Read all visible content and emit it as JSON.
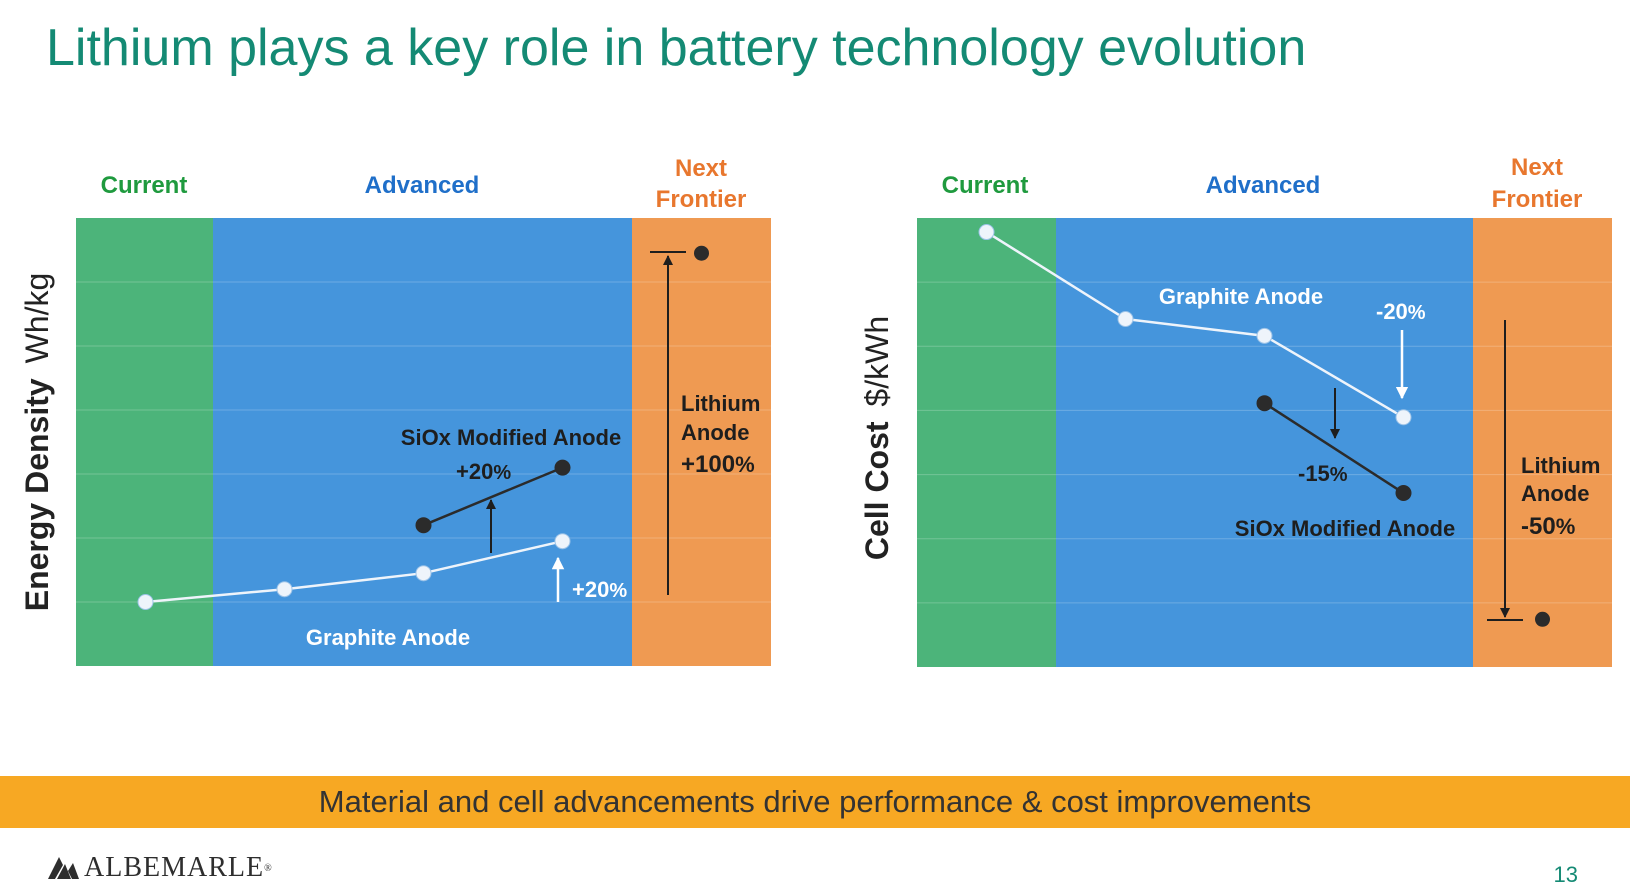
{
  "slide": {
    "title": "Lithium plays a key role in battery technology evolution",
    "banner": "Material and cell advancements drive performance & cost improvements",
    "logo_text": "ALBEMARLE",
    "logo_reg": "®",
    "page_number": "13"
  },
  "colors": {
    "title": "#148a74",
    "current_zone": "#4cb47a",
    "advanced_zone": "#4595dc",
    "frontier_zone": "#ef9a52",
    "current_label": "#1f9a3e",
    "advanced_label": "#1f6fc9",
    "frontier_label": "#e8772e",
    "graphite_series": "#eef4fb",
    "siox_series": "#2b2b2b",
    "banner": "#f7a823"
  },
  "chart_data": [
    {
      "type": "line",
      "title": "",
      "ylabel_bold": "Energy Density",
      "ylabel_unit": "Wh/kg",
      "zones": [
        {
          "label_lines": [
            "Current"
          ]
        },
        {
          "label_lines": [
            "Advanced"
          ]
        },
        {
          "label_lines": [
            "Next",
            "Frontier"
          ]
        }
      ],
      "ylim": [
        0,
        7
      ],
      "grid": true,
      "series": [
        {
          "name": "Graphite Anode",
          "points": [
            [
              0.5,
              1.0
            ],
            [
              1.5,
              1.2
            ],
            [
              2.5,
              1.45
            ],
            [
              3.5,
              1.95
            ]
          ]
        },
        {
          "name": "SiOx Modified Anode",
          "points": [
            [
              2.5,
              2.2
            ],
            [
              3.5,
              3.1
            ]
          ]
        },
        {
          "name": "Lithium Anode",
          "points": [
            [
              4.5,
              6.45
            ]
          ]
        }
      ],
      "annotations": {
        "graphite_label": "Graphite Anode",
        "graphite_change": "+20",
        "siox_label": "SiOx Modified Anode",
        "siox_change": "+20",
        "lithium_label_1": "Lithium",
        "lithium_label_2": "Anode",
        "lithium_change": "+100",
        "percent_sign": "%"
      }
    },
    {
      "type": "line",
      "title": "",
      "ylabel_bold": "Cell Cost",
      "ylabel_unit": "$/kWh",
      "zones": [
        {
          "label_lines": [
            "Current"
          ]
        },
        {
          "label_lines": [
            "Advanced"
          ]
        },
        {
          "label_lines": [
            "Next",
            "Frontier"
          ]
        }
      ],
      "ylim": [
        0,
        8
      ],
      "grid": true,
      "series": [
        {
          "name": "Graphite Anode",
          "points": [
            [
              0.5,
              7.75
            ],
            [
              1.5,
              6.2
            ],
            [
              2.5,
              5.9
            ],
            [
              3.5,
              4.45
            ]
          ]
        },
        {
          "name": "SiOx Modified Anode",
          "points": [
            [
              2.5,
              4.7
            ],
            [
              3.5,
              3.1
            ]
          ]
        },
        {
          "name": "Lithium Anode",
          "points": [
            [
              4.5,
              0.85
            ]
          ]
        }
      ],
      "annotations": {
        "graphite_label": "Graphite Anode",
        "graphite_change": "-20",
        "siox_label": "SiOx Modified Anode",
        "siox_change": "-15",
        "lithium_label_1": "Lithium",
        "lithium_label_2": "Anode",
        "lithium_change": "-50",
        "percent_sign": "%"
      }
    }
  ]
}
